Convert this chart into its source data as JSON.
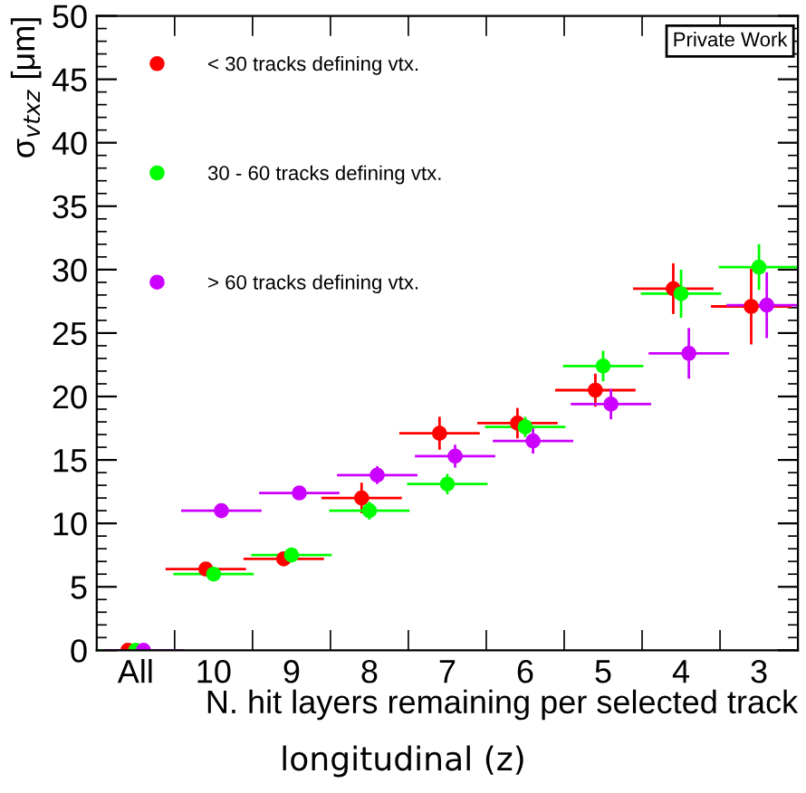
{
  "chart_data": {
    "type": "scatter",
    "xlabel": "N. hit layers remaining per selected track",
    "ylabel": "σ$_{vtxz}$ [μm]",
    "categories": [
      "All",
      "10",
      "9",
      "8",
      "7",
      "6",
      "5",
      "4",
      "3"
    ],
    "series": [
      {
        "name": "< 30 tracks defining vtx.",
        "color": "#ff0000",
        "values": [
          0,
          6.4,
          7.2,
          12,
          17.1,
          17.9,
          20.5,
          28.5,
          27.1
        ],
        "errors": [
          0,
          0.3,
          0.3,
          1.2,
          1.3,
          1.2,
          1.3,
          2.0,
          3.0
        ]
      },
      {
        "name": "30 - 60 tracks defining vtx.",
        "color": "#00ff00",
        "values": [
          0,
          6.0,
          7.5,
          11,
          13.1,
          17.6,
          22.4,
          28.1,
          30.2
        ],
        "errors": [
          0,
          0.3,
          0.3,
          0.7,
          0.8,
          0.8,
          1.2,
          1.9,
          1.8
        ]
      },
      {
        "name": "> 60 tracks defining vtx.",
        "color": "#cc00ff",
        "values": [
          0,
          11,
          12.4,
          13.8,
          15.3,
          16.5,
          19.4,
          23.4,
          27.2
        ],
        "errors": [
          0,
          0.5,
          0.5,
          0.7,
          0.9,
          1.0,
          1.2,
          2.0,
          2.6
        ]
      }
    ],
    "ylim": [
      0,
      50
    ],
    "yticks": [
      0,
      5,
      10,
      15,
      20,
      25,
      30,
      35,
      40,
      45,
      50
    ],
    "marker": "circle",
    "legend": "top left",
    "grid": false,
    "annotations": [
      "Private Work",
      "longitudinal (z)"
    ]
  }
}
